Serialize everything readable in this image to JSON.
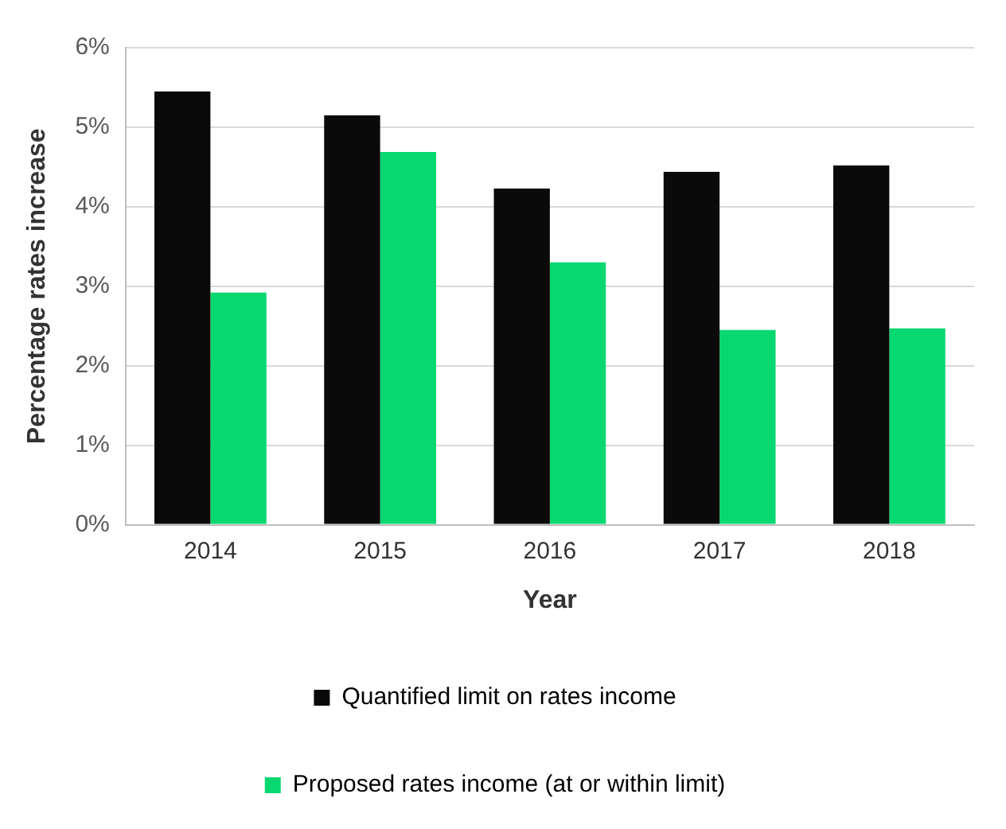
{
  "chart_data": {
    "type": "bar",
    "xlabel": "Year",
    "ylabel": "Percentage rates increase",
    "categories": [
      "2014",
      "2015",
      "2016",
      "2017",
      "2018"
    ],
    "series": [
      {
        "name": "Quantified limit on rates income",
        "color": "#0a0a0a",
        "values": [
          5.45,
          5.15,
          4.23,
          4.44,
          4.52
        ]
      },
      {
        "name": "Proposed rates income (at or within limit)",
        "color": "#08d870",
        "values": [
          2.92,
          4.69,
          3.3,
          2.45,
          2.47
        ]
      }
    ],
    "ylim": [
      0,
      6
    ],
    "yticks": [
      {
        "value": 0,
        "label": "0%"
      },
      {
        "value": 1,
        "label": "1%"
      },
      {
        "value": 2,
        "label": "2%"
      },
      {
        "value": 3,
        "label": "3%"
      },
      {
        "value": 4,
        "label": "4%"
      },
      {
        "value": 5,
        "label": "5%"
      },
      {
        "value": 6,
        "label": "6%"
      }
    ],
    "grid": "y",
    "legend": "bottom"
  }
}
